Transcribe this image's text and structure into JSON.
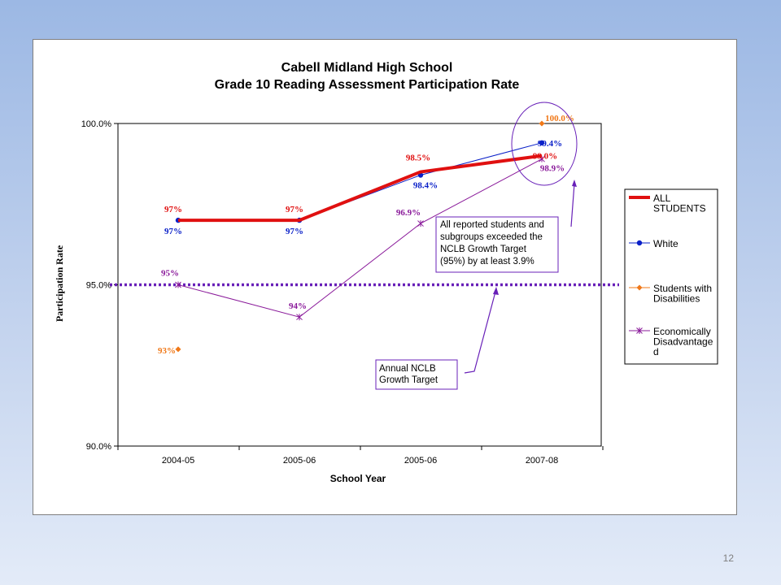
{
  "slide": {
    "number": "12"
  },
  "colors": {
    "all_students": "#e01010",
    "white": "#0a20c8",
    "students_with_disabilities": "#f07818",
    "economically_disadvantaged": "#8a1a9a",
    "target_line": "#6820b8",
    "callout_border": "#6820b8"
  },
  "chart_data": {
    "type": "line",
    "title": "Cabell Midland High School",
    "subtitle": "Grade 10 Reading Assessment Participation Rate",
    "xlabel": "School Year",
    "ylabel": "Participation Rate",
    "categories": [
      "2004-05",
      "2005-06",
      "2005-06",
      "2007-08"
    ],
    "ylim": [
      90,
      100
    ],
    "yticks": [
      "90.0%",
      "95.0%",
      "100.0%"
    ],
    "legend_position": "right",
    "series": [
      {
        "name": "ALL STUDENTS",
        "values": [
          97,
          97,
          98.5,
          99.0
        ],
        "labels": [
          "97%",
          "97%",
          "98.5%",
          "99.0%"
        ],
        "color_key": "all_students",
        "marker": "none"
      },
      {
        "name": "White",
        "values": [
          97,
          97,
          98.4,
          99.4
        ],
        "labels": [
          "97%",
          "97%",
          "98.4%",
          "99.4%"
        ],
        "color_key": "white",
        "marker": "circle"
      },
      {
        "name": "Students with Disabilities",
        "values": [
          93,
          null,
          null,
          100.0
        ],
        "labels": [
          "93%",
          "",
          "",
          "100.0%"
        ],
        "color_key": "students_with_disabilities",
        "marker": "diamond"
      },
      {
        "name": "Economically Disadvantaged",
        "values": [
          95,
          94,
          96.9,
          98.9
        ],
        "labels": [
          "95%",
          "94%",
          "96.9%",
          "98.9%"
        ],
        "color_key": "economically_disadvantaged",
        "marker": "star"
      }
    ],
    "target_line": {
      "value": 95
    },
    "annotations": {
      "callout_exceeded": [
        "All reported students and",
        "subgroups exceeded  the",
        "NCLB Growth Target",
        "(95%) by at least 3.9%"
      ],
      "callout_target": [
        "Annual NCLB",
        "Growth Target"
      ]
    },
    "legend_labels": {
      "all_students": [
        "ALL",
        "STUDENTS"
      ],
      "white": [
        "White"
      ],
      "students_with_disabilities": [
        "Students with",
        "Disabilities"
      ],
      "economically_disadvantaged": [
        "Economically",
        "Disadvantage",
        "d"
      ]
    }
  }
}
